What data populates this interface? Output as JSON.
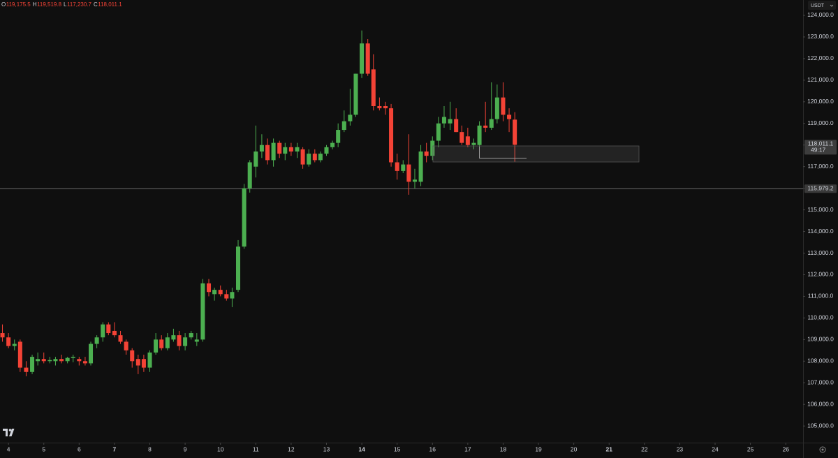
{
  "header": [
    {
      "key": "O",
      "value": "119,175.5"
    },
    {
      "key": "H",
      "value": "119,519.8"
    },
    {
      "key": "L",
      "value": "117,230.7"
    },
    {
      "key": "C",
      "value": "118,011.1"
    }
  ],
  "currency": "USDT",
  "chart_data": {
    "type": "candlestick",
    "up_color": "#4caf50",
    "down_color": "#f44336",
    "xlim": [
      3.76,
      26.49
    ],
    "ylim": [
      104230,
      124710
    ],
    "xticks": [
      4,
      5,
      6,
      7,
      8,
      9,
      10,
      11,
      12,
      13,
      14,
      15,
      16,
      17,
      18,
      19,
      20,
      21,
      22,
      23,
      24,
      25,
      26
    ],
    "bold_xticks": [
      7,
      14,
      21
    ],
    "yticks": [
      {
        "value": 105000,
        "label": "105,000.0"
      },
      {
        "value": 106000,
        "label": "106,000.0"
      },
      {
        "value": 107000,
        "label": "107,000.0"
      },
      {
        "value": 108000,
        "label": "108,000.0"
      },
      {
        "value": 109000,
        "label": "109,000.0"
      },
      {
        "value": 110000,
        "label": "110,000.0"
      },
      {
        "value": 111000,
        "label": "111,000.0"
      },
      {
        "value": 112000,
        "label": "112,000.0"
      },
      {
        "value": 113000,
        "label": "113,000.0"
      },
      {
        "value": 114000,
        "label": "114,000.0"
      },
      {
        "value": 115000,
        "label": "115,000.0"
      },
      {
        "value": 116000,
        "label": "116,000.0"
      },
      {
        "value": 117000,
        "label": "117,000.0"
      },
      {
        "value": 118000,
        "label": "118,000.0"
      },
      {
        "value": 119000,
        "label": "119,000.0"
      },
      {
        "value": 120000,
        "label": "120,000.0"
      },
      {
        "value": 121000,
        "label": "121,000.0"
      },
      {
        "value": 122000,
        "label": "122,000.0"
      },
      {
        "value": 123000,
        "label": "123,000.0"
      },
      {
        "value": 124000,
        "label": "124,000.0"
      }
    ],
    "price_line": {
      "value": 115979.2,
      "label": "115,979.2"
    },
    "last_price": {
      "value": 118011.1,
      "label": "118,011.1"
    },
    "countdown": "49:17",
    "x": [
      3.83,
      4,
      4.17,
      4.33,
      4.5,
      4.67,
      4.83,
      5,
      5.17,
      5.33,
      5.5,
      5.67,
      5.83,
      6,
      6.17,
      6.33,
      6.5,
      6.67,
      6.83,
      7,
      7.17,
      7.33,
      7.5,
      7.67,
      7.83,
      8,
      8.17,
      8.33,
      8.5,
      8.67,
      8.83,
      9,
      9.17,
      9.33,
      9.5,
      9.67,
      9.83,
      10,
      10.17,
      10.33,
      10.5,
      10.67,
      10.83,
      11,
      11.17,
      11.33,
      11.5,
      11.67,
      11.83,
      12,
      12.17,
      12.33,
      12.5,
      12.67,
      12.83,
      13,
      13.17,
      13.33,
      13.5,
      13.67,
      13.83,
      14,
      14.17,
      14.33,
      14.5,
      14.67,
      14.83,
      15,
      15.17,
      15.33,
      15.5,
      15.67,
      15.83,
      16,
      16.17,
      16.33,
      16.5,
      16.67,
      16.83,
      17,
      17.17,
      17.33,
      17.5,
      17.67,
      17.83,
      18,
      18.17,
      18.33
    ],
    "open": [
      109300,
      109100,
      108700,
      108900,
      107700,
      107500,
      108000,
      108100,
      108000,
      108000,
      108100,
      108000,
      108150,
      108100,
      108000,
      107900,
      108800,
      109100,
      109700,
      109400,
      109200,
      108900,
      108500,
      108100,
      108100,
      107700,
      108400,
      109000,
      108600,
      109000,
      109200,
      108700,
      109100,
      108900,
      109000,
      111600,
      111100,
      111300,
      111100,
      110900,
      111300,
      113300,
      116000,
      117000,
      117700,
      118000,
      117300,
      118100,
      117600,
      117900,
      117700,
      117800,
      117100,
      117600,
      117300,
      117600,
      117900,
      118100,
      118700,
      119100,
      119400,
      121300,
      122700,
      121500,
      119800,
      119800,
      119700,
      117200,
      116800,
      117100,
      116300,
      116300,
      117700,
      117500,
      118200,
      119000,
      119000,
      119200,
      118600,
      118400,
      118000,
      118000,
      118900,
      118800,
      119200,
      120200,
      119400,
      119175.5
    ],
    "high": [
      109700,
      109300,
      109000,
      109000,
      108000,
      108300,
      108400,
      108400,
      108200,
      108200,
      108300,
      108200,
      108300,
      108200,
      108200,
      108900,
      109200,
      109800,
      109800,
      109800,
      109400,
      109000,
      108600,
      108300,
      108300,
      108500,
      109300,
      109200,
      109300,
      109500,
      109400,
      109300,
      109400,
      109300,
      111800,
      111800,
      111400,
      111500,
      111300,
      111400,
      113600,
      116200,
      117300,
      118900,
      118500,
      118300,
      118300,
      118200,
      118100,
      118100,
      118100,
      117900,
      117800,
      117800,
      117700,
      118000,
      118200,
      119000,
      119600,
      120600,
      121300,
      123300,
      122900,
      122200,
      120200,
      120000,
      119900,
      117600,
      117300,
      118500,
      116900,
      118000,
      118100,
      118400,
      119300,
      119800,
      120000,
      119700,
      118900,
      118800,
      118300,
      119100,
      120000,
      120900,
      120800,
      120900,
      119700,
      119519.8
    ],
    "low": [
      108900,
      108600,
      108500,
      107500,
      107300,
      107400,
      107800,
      107900,
      107900,
      107800,
      107900,
      107900,
      107950,
      107800,
      107800,
      107800,
      108600,
      108900,
      109200,
      109100,
      108800,
      108300,
      107700,
      107400,
      107500,
      107500,
      108300,
      108500,
      108500,
      108900,
      108500,
      108500,
      109000,
      108700,
      108900,
      111000,
      110800,
      111000,
      110800,
      110500,
      111200,
      113200,
      115800,
      116500,
      117400,
      117100,
      117000,
      117400,
      117300,
      117500,
      117400,
      116900,
      117000,
      117200,
      117200,
      117500,
      117800,
      117900,
      118600,
      118900,
      119300,
      121100,
      121200,
      119600,
      119600,
      119400,
      117000,
      116400,
      116700,
      115700,
      116000,
      116100,
      117200,
      117300,
      117900,
      118800,
      118700,
      118600,
      118000,
      117900,
      117800,
      117900,
      118600,
      118700,
      119000,
      119100,
      118600,
      117230.7
    ],
    "close": [
      109100,
      108700,
      108800,
      107700,
      107500,
      108200,
      108100,
      108000,
      108050,
      108100,
      108000,
      108150,
      108200,
      108000,
      107900,
      108800,
      109100,
      109700,
      109300,
      109200,
      108900,
      108500,
      108000,
      107800,
      107700,
      108400,
      109000,
      108600,
      109100,
      109200,
      108700,
      109100,
      109300,
      109000,
      111600,
      111200,
      111300,
      111100,
      110900,
      111200,
      113300,
      116000,
      117200,
      117700,
      118000,
      117300,
      118100,
      117600,
      117900,
      117700,
      117900,
      117100,
      117600,
      117300,
      117600,
      117900,
      118100,
      118700,
      119100,
      119400,
      121300,
      122700,
      121300,
      119800,
      119700,
      119700,
      117200,
      116800,
      117100,
      116300,
      116400,
      117700,
      117500,
      118200,
      119000,
      119300,
      119200,
      118600,
      118100,
      118000,
      118100,
      118900,
      118800,
      119200,
      120200,
      119400,
      119200,
      118011.1
    ]
  }
}
